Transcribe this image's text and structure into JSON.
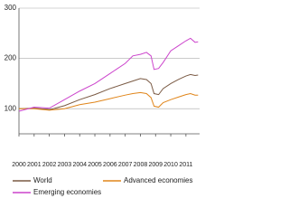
{
  "chart_data": {
    "type": "line",
    "x": [
      2000,
      2001,
      2002,
      2003,
      2004,
      2005,
      2006,
      2007,
      2007.5,
      2008,
      2008.4,
      2008.7,
      2008.9,
      2009.2,
      2009.5,
      2010,
      2010.5,
      2011,
      2011.3,
      2011.6,
      2011.8
    ],
    "series": [
      {
        "name": "World",
        "color": "#7a5a44",
        "values": [
          100,
          101,
          98,
          106,
          118,
          128,
          140,
          150,
          155,
          160,
          158,
          150,
          130,
          128,
          140,
          150,
          158,
          165,
          168,
          166,
          167
        ]
      },
      {
        "name": "Advanced economies",
        "color": "#e0851a",
        "values": [
          100,
          100,
          97,
          100,
          108,
          113,
          120,
          127,
          130,
          132,
          130,
          122,
          105,
          103,
          112,
          118,
          123,
          128,
          130,
          127,
          127
        ]
      },
      {
        "name": "Emerging economies",
        "color": "#cc44cc",
        "values": [
          95,
          103,
          101,
          118,
          135,
          150,
          170,
          190,
          205,
          208,
          212,
          205,
          178,
          180,
          192,
          215,
          225,
          235,
          240,
          232,
          233
        ]
      }
    ],
    "xlim": [
      2000,
      2011.9
    ],
    "xticks": [
      2000,
      2001,
      2002,
      2003,
      2004,
      2005,
      2006,
      2007,
      2008,
      2009,
      2010,
      2011
    ],
    "ylim": [
      50,
      300
    ],
    "yticks": [
      100,
      200,
      300
    ],
    "grid": true
  }
}
